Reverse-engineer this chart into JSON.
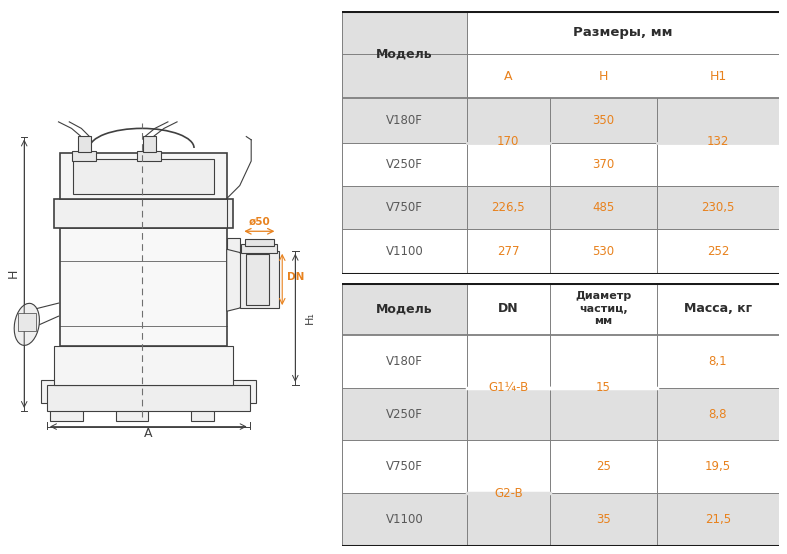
{
  "table1_rows": [
    [
      "V180F",
      "170",
      "350",
      "132"
    ],
    [
      "V250F",
      "",
      "370",
      ""
    ],
    [
      "V750F",
      "226,5",
      "485",
      "230,5"
    ],
    [
      "V1100",
      "277",
      "530",
      "252"
    ]
  ],
  "table2_rows": [
    [
      "V180F",
      "G1¼-B",
      "15",
      "8,1"
    ],
    [
      "V250F",
      "",
      "",
      "8,8"
    ],
    [
      "V750F",
      "G2-B",
      "25",
      "19,5"
    ],
    [
      "V1100",
      "",
      "35",
      "21,5"
    ]
  ],
  "color_orange": "#E8821E",
  "color_shaded": "#E0E0E0",
  "color_border_heavy": "#1A1A1A",
  "color_border_light": "#7F7F7F",
  "color_white": "#FFFFFF",
  "color_dark": "#404040",
  "color_dashed": "#707070",
  "color_model": "#595959"
}
